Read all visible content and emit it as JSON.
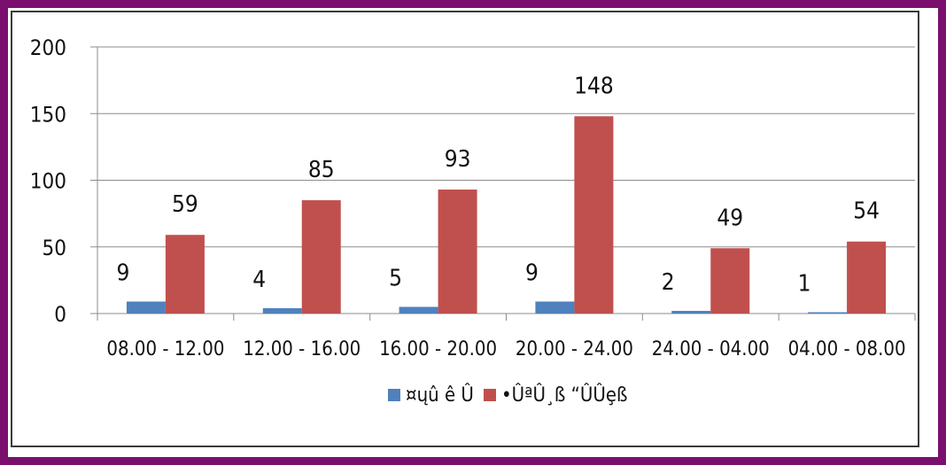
{
  "colors": {
    "frame": "#7a0f6e",
    "series_blue": "#4f81bd",
    "series_red": "#c0504d",
    "grid": "#8c8c8c"
  },
  "chart_data": {
    "type": "bar",
    "categories": [
      "08.00 - 12.00",
      "12.00 - 16.00",
      "16.00 - 20.00",
      "20.00 - 24.00",
      "24.00 - 04.00",
      "04.00 - 08.00"
    ],
    "series": [
      {
        "name": "¤ųû ê Û",
        "color": "#4f81bd",
        "values": [
          9,
          4,
          5,
          9,
          2,
          1
        ]
      },
      {
        "name": "•ÛªÛ¸ß “ÛÛȩß",
        "color": "#c0504d",
        "values": [
          59,
          85,
          93,
          148,
          49,
          54
        ]
      }
    ],
    "ylim": [
      0,
      200
    ],
    "yticks": [
      0,
      50,
      100,
      150,
      200
    ],
    "grid": true,
    "legend": "bottom",
    "title": "",
    "xlabel": "",
    "ylabel": ""
  }
}
